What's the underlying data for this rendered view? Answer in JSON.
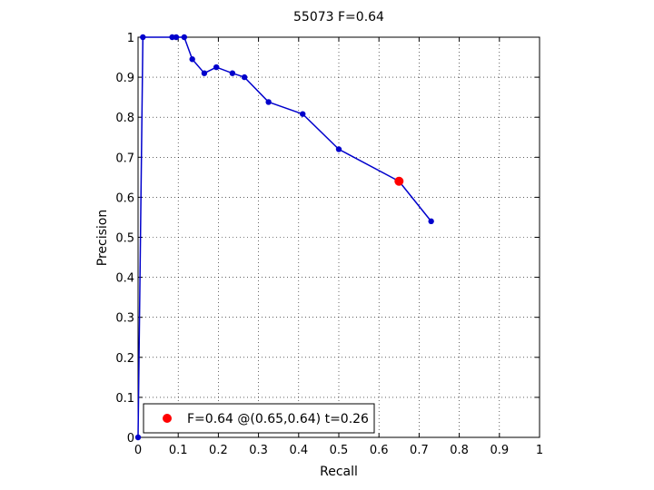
{
  "chart_data": {
    "type": "line",
    "title": "55073 F=0.64",
    "xlabel": "Recall",
    "ylabel": "Precision",
    "xlim": [
      0,
      1
    ],
    "ylim": [
      0,
      1
    ],
    "xticks": [
      0,
      0.1,
      0.2,
      0.3,
      0.4,
      0.5,
      0.6,
      0.7,
      0.8,
      0.9,
      1
    ],
    "yticks": [
      0,
      0.1,
      0.2,
      0.3,
      0.4,
      0.5,
      0.6,
      0.7,
      0.8,
      0.9,
      1
    ],
    "xtick_labels": [
      "0",
      "0.1",
      "0.2",
      "0.3",
      "0.4",
      "0.5",
      "0.6",
      "0.7",
      "0.8",
      "0.9",
      "1"
    ],
    "ytick_labels": [
      "0",
      "0.1",
      "0.2",
      "0.3",
      "0.4",
      "0.5",
      "0.6",
      "0.7",
      "0.8",
      "0.9",
      "1"
    ],
    "grid": true,
    "legend_position": "bottom-left",
    "series": [
      {
        "color": "#0000cc",
        "x": [
          0.0,
          0.012,
          0.085,
          0.095,
          0.115,
          0.135,
          0.165,
          0.195,
          0.235,
          0.265,
          0.325,
          0.41,
          0.5,
          0.65,
          0.73
        ],
        "y": [
          0.0,
          1.0,
          1.0,
          1.0,
          1.0,
          0.945,
          0.91,
          0.925,
          0.91,
          0.9,
          0.838,
          0.808,
          0.72,
          0.64,
          0.54
        ]
      }
    ],
    "best_point": {
      "x": 0.65,
      "y": 0.64,
      "color": "#ff0000",
      "label": "F=0.64 @(0.65,0.64) t=0.26"
    }
  }
}
